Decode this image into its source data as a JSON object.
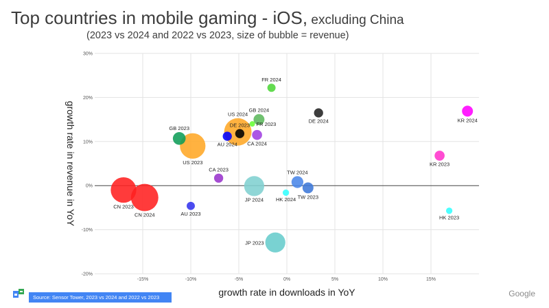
{
  "header": {
    "title_main": "Top countries in mobile gaming - iOS,",
    "title_sub": " excluding China",
    "subtitle": "(2023 vs 2024 and 2022 vs 2023, size of bubble = revenue)"
  },
  "footer": {
    "source": "Source: Sensor Tower, 2023 vs 2024 and 2022 vs 2023",
    "brand": "Google"
  },
  "colors": {
    "CN": "#ff2020",
    "US": "#ffa726",
    "GB": "#0f9d58",
    "GB24": "#5cb85c",
    "DE": "#000000",
    "DE24": "#222222",
    "FR": "#66ff33",
    "FR24": "#4dd638",
    "AU": "#0000ff",
    "AU23": "#3333ee",
    "CA": "#9933cc",
    "CA24": "#a040e0",
    "JP": "#66cccc",
    "JP24": "#80d0d0",
    "TW": "#4a86e8",
    "TW23": "#3c78d8",
    "HK": "#33ffff",
    "KR": "#ff00ff",
    "KR23": "#ff33cc"
  },
  "chart_data": {
    "type": "scatter",
    "title": "Top countries in mobile gaming - iOS, excluding China",
    "xlabel": "growth rate in downloads in YoY",
    "ylabel": "growth rate in revenue in YoY",
    "xlim": [
      -20,
      20
    ],
    "ylim": [
      -20,
      30
    ],
    "xticks": [
      "-15%",
      "-10%",
      "-5%",
      "0%",
      "5%",
      "10%",
      "15%"
    ],
    "xtick_values": [
      -15,
      -10,
      -5,
      0,
      5,
      10,
      15
    ],
    "yticks": [
      "30%",
      "20%",
      "10%",
      "0%",
      "-10%",
      "-20%"
    ],
    "ytick_values": [
      30,
      20,
      10,
      0,
      -10,
      -20
    ],
    "points": [
      {
        "label": "CN 2023",
        "x": -17.0,
        "y": -1.0,
        "size": 14,
        "color": "#ff2020",
        "lx": 0,
        "ly": 1
      },
      {
        "label": "CN 2024",
        "x": -14.8,
        "y": -2.7,
        "size": 15,
        "color": "#ff2020",
        "lx": 0,
        "ly": 1
      },
      {
        "label": "US 2023",
        "x": -9.8,
        "y": 9.0,
        "size": 14,
        "color": "#ffa726",
        "lx": 0,
        "ly": 1
      },
      {
        "label": "US 2024",
        "x": -5.1,
        "y": 12.2,
        "size": 15,
        "color": "#ffa726",
        "lx": 0,
        "ly": -1
      },
      {
        "label": "GB 2023",
        "x": -11.2,
        "y": 10.7,
        "size": 7,
        "color": "#0f9d58",
        "lx": 0,
        "ly": -1
      },
      {
        "label": "GB 2024",
        "x": -2.9,
        "y": 15.0,
        "size": 6,
        "color": "#5cb85c",
        "lx": 0,
        "ly": -1
      },
      {
        "label": "DE 2023",
        "x": -4.9,
        "y": 11.8,
        "size": 5,
        "color": "#000000",
        "lx": 0,
        "ly": -1
      },
      {
        "label": "DE 2024",
        "x": 3.3,
        "y": 16.5,
        "size": 5,
        "color": "#222222",
        "lx": 0,
        "ly": 1
      },
      {
        "label": "FR 2023",
        "x": -3.6,
        "y": 14.0,
        "size": 3,
        "color": "#66ff33",
        "lx": 1,
        "ly": 0
      },
      {
        "label": "FR 2024",
        "x": -1.6,
        "y": 22.2,
        "size": 4.5,
        "color": "#4dd638",
        "lx": 0,
        "ly": -1
      },
      {
        "label": "AU 2023",
        "x": -10.0,
        "y": -4.6,
        "size": 4.5,
        "color": "#3333ee",
        "lx": 0,
        "ly": 1
      },
      {
        "label": "AU 2024",
        "x": -6.2,
        "y": 11.2,
        "size": 5,
        "color": "#0000ff",
        "lx": 0,
        "ly": 1
      },
      {
        "label": "CA 2023",
        "x": -7.1,
        "y": 1.7,
        "size": 5,
        "color": "#9933cc",
        "lx": 0,
        "ly": -1
      },
      {
        "label": "CA 2024",
        "x": -3.1,
        "y": 11.5,
        "size": 5.5,
        "color": "#a040e0",
        "lx": 0,
        "ly": 1
      },
      {
        "label": "JP 2023",
        "x": -1.2,
        "y": -12.9,
        "size": 11,
        "color": "#66cccc",
        "lx": -1,
        "ly": 0
      },
      {
        "label": "JP 2024",
        "x": -3.4,
        "y": -0.1,
        "size": 11,
        "color": "#80d0d0",
        "lx": 0,
        "ly": 1
      },
      {
        "label": "TW 2023",
        "x": 2.2,
        "y": -0.5,
        "size": 6,
        "color": "#3c78d8",
        "lx": 0,
        "ly": 1
      },
      {
        "label": "TW 2024",
        "x": 1.1,
        "y": 0.8,
        "size": 6.5,
        "color": "#4a86e8",
        "lx": 0,
        "ly": -1
      },
      {
        "label": "HK 2023",
        "x": 16.9,
        "y": -5.7,
        "size": 3.5,
        "color": "#33ffff",
        "lx": 0,
        "ly": 1
      },
      {
        "label": "HK 2024",
        "x": -0.1,
        "y": -1.6,
        "size": 3.5,
        "color": "#33ffff",
        "lx": 0,
        "ly": 1
      },
      {
        "label": "KR 2023",
        "x": 15.9,
        "y": 6.8,
        "size": 5.5,
        "color": "#ff33cc",
        "lx": 0,
        "ly": 1
      },
      {
        "label": "KR 2024",
        "x": 18.8,
        "y": 16.9,
        "size": 6,
        "color": "#ff00ff",
        "lx": 0,
        "ly": 1
      }
    ]
  }
}
